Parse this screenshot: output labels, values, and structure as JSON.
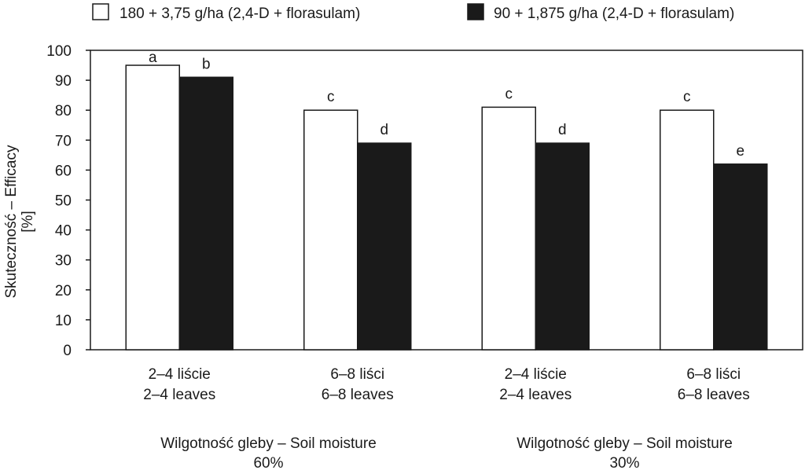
{
  "chart_data": {
    "type": "bar",
    "categories": [
      {
        "line1": "2–4 liście",
        "line2": "2–4 leaves"
      },
      {
        "line1": "6–8 liści",
        "line2": "6–8 leaves"
      },
      {
        "line1": "2–4 liście",
        "line2": "2–4 leaves"
      },
      {
        "line1": "6–8 liści",
        "line2": "6–8 leaves"
      }
    ],
    "groups": [
      {
        "line1": "Wilgotność gleby – Soil moisture",
        "line2": "60%"
      },
      {
        "line1": "Wilgotność gleby – Soil moisture",
        "line2": "30%"
      }
    ],
    "series": [
      {
        "name": "180 + 3,75 g/ha (2,4-D + florasulam)",
        "color": "#ffffff",
        "values": [
          95,
          80,
          81,
          80
        ],
        "labels": [
          "a",
          "c",
          "c",
          "c"
        ]
      },
      {
        "name": "90 + 1,875 g/ha (2,4-D + florasulam)",
        "color": "#1a1a1a",
        "values": [
          91,
          69,
          69,
          62
        ],
        "labels": [
          "b",
          "d",
          "d",
          "e"
        ]
      }
    ],
    "ylabel": {
      "line1": "Skuteczność – Efficacy",
      "line2": "[%]"
    },
    "ylim": [
      0,
      100
    ],
    "yticks": [
      "0",
      "10",
      "20",
      "30",
      "40",
      "50",
      "60",
      "70",
      "80",
      "90",
      "100"
    ],
    "grid": false,
    "legend_position": "top"
  }
}
